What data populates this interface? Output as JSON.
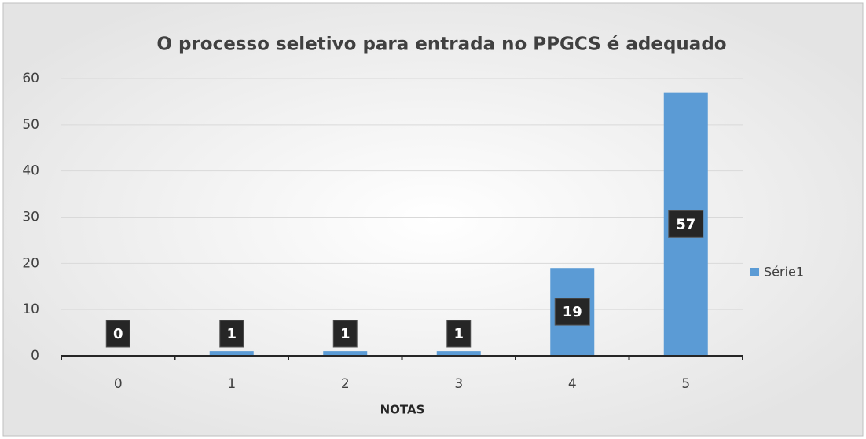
{
  "chart_data": {
    "type": "bar",
    "title": "O processo seletivo para entrada no PPGCS é adequado",
    "x_label": "NOTAS",
    "categories": [
      "0",
      "1",
      "2",
      "3",
      "4",
      "5"
    ],
    "series": [
      {
        "name": "Série1",
        "color": "#5b9bd5",
        "values": [
          0,
          1,
          1,
          1,
          19,
          57
        ]
      }
    ],
    "ylim": [
      0,
      60
    ],
    "yticks": [
      0,
      10,
      20,
      30,
      40,
      50,
      60
    ],
    "grid": true,
    "legend": "right"
  }
}
